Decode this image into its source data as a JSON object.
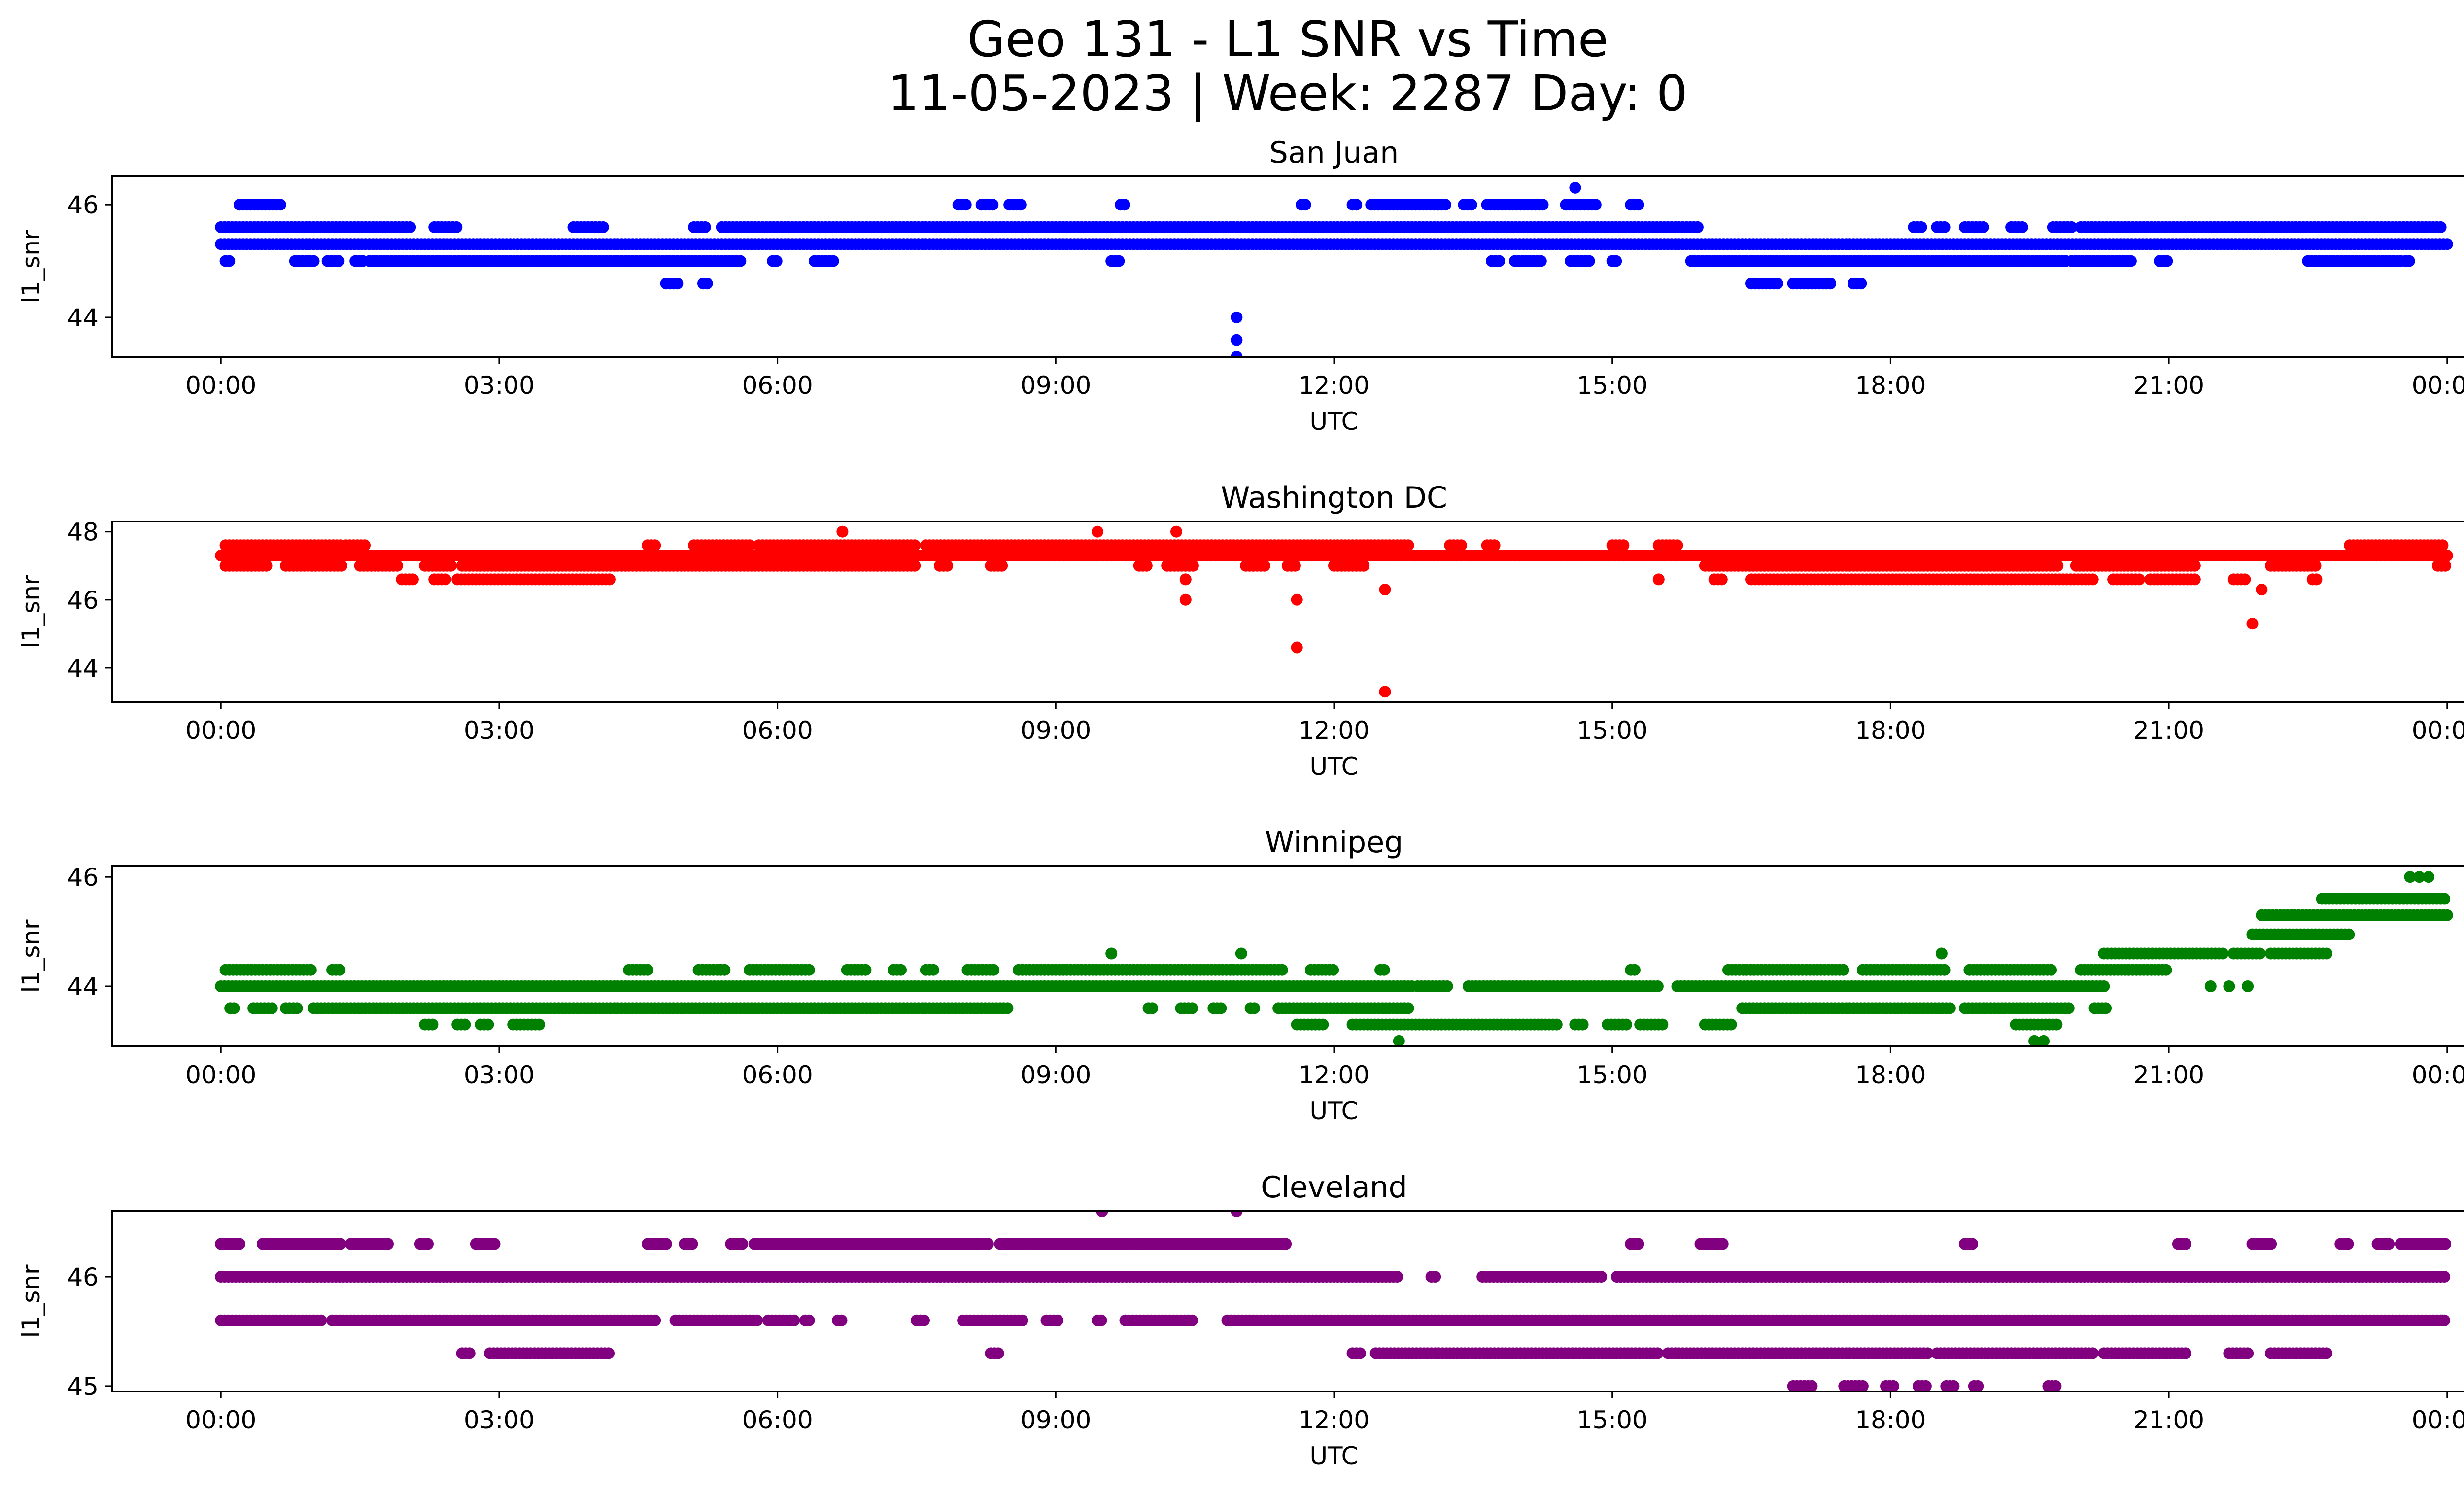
{
  "figure": {
    "title_line1": "Geo 131 - L1 SNR vs Time",
    "title_line2": "11-05-2023 | Week: 2287 Day: 0"
  },
  "chart_data": [
    {
      "type": "scatter",
      "title": "San Juan",
      "xlabel": "UTC",
      "ylabel": "l1_snr",
      "color": "#0000ff",
      "x_unit": "hours UTC (0 = 2023-11-05 00:00)",
      "xlim": [
        -1.17,
        25.17
      ],
      "ylim": [
        43.3,
        46.5
      ],
      "xticks": [
        "00:00",
        "03:00",
        "06:00",
        "09:00",
        "12:00",
        "15:00",
        "18:00",
        "21:00",
        "00:00"
      ],
      "yticks": [
        44,
        46
      ],
      "bands": [
        {
          "y": 45.6,
          "ranges": [
            [
              0,
              2.05
            ],
            [
              2.3,
              2.55
            ],
            [
              3.8,
              4.15
            ],
            [
              5.1,
              5.25
            ],
            [
              5.4,
              15.95
            ],
            [
              18.25,
              18.35
            ],
            [
              18.5,
              18.6
            ],
            [
              18.8,
              19.0
            ],
            [
              19.3,
              19.45
            ],
            [
              19.75,
              19.95
            ],
            [
              20.05,
              23.95
            ]
          ]
        },
        {
          "y": 45.3,
          "ranges": [
            [
              0,
              24.0
            ]
          ]
        },
        {
          "y": 45.0,
          "ranges": [
            [
              0.05,
              0.12
            ],
            [
              0.8,
              1.0
            ],
            [
              1.15,
              1.3
            ],
            [
              1.45,
              1.55
            ],
            [
              1.6,
              5.6
            ],
            [
              5.95,
              6.0
            ],
            [
              6.4,
              6.6
            ],
            [
              9.6,
              9.7
            ],
            [
              13.7,
              13.8
            ],
            [
              13.95,
              14.25
            ],
            [
              14.55,
              14.75
            ],
            [
              15.0,
              15.05
            ],
            [
              15.85,
              19.9
            ],
            [
              19.95,
              20.6
            ],
            [
              20.9,
              21.0
            ],
            [
              22.5,
              23.5
            ],
            [
              23.55,
              23.6
            ]
          ]
        },
        {
          "y": 44.6,
          "ranges": [
            [
              4.8,
              4.95
            ],
            [
              5.2,
              5.25
            ],
            [
              16.5,
              16.8
            ],
            [
              16.95,
              17.35
            ],
            [
              17.6,
              17.7
            ]
          ]
        },
        {
          "y": 46.0,
          "ranges": [
            [
              0.2,
              0.65
            ],
            [
              7.95,
              8.05
            ],
            [
              8.2,
              8.35
            ],
            [
              8.5,
              8.65
            ],
            [
              9.7,
              9.75
            ],
            [
              11.65,
              11.7
            ],
            [
              12.2,
              12.25
            ],
            [
              12.4,
              13.2
            ],
            [
              13.4,
              13.5
            ],
            [
              13.65,
              14.25
            ],
            [
              14.5,
              14.85
            ],
            [
              15.2,
              15.3
            ]
          ]
        }
      ],
      "points": [
        [
          10.95,
          44.0
        ],
        [
          10.95,
          43.6
        ],
        [
          10.95,
          43.3
        ],
        [
          14.6,
          46.3
        ]
      ]
    },
    {
      "type": "scatter",
      "title": "Washington DC",
      "xlabel": "UTC",
      "ylabel": "l1_snr",
      "color": "#ff0000",
      "x_unit": "hours UTC (0 = 2023-11-05 00:00)",
      "xlim": [
        -1.17,
        25.17
      ],
      "ylim": [
        43.0,
        48.3
      ],
      "xticks": [
        "00:00",
        "03:00",
        "06:00",
        "09:00",
        "12:00",
        "15:00",
        "18:00",
        "21:00",
        "00:00"
      ],
      "yticks": [
        44,
        46,
        48
      ],
      "bands": [
        {
          "y": 47.6,
          "ranges": [
            [
              0.05,
              1.3
            ],
            [
              1.35,
              1.55
            ],
            [
              4.6,
              4.7
            ],
            [
              5.1,
              5.7
            ],
            [
              5.8,
              7.5
            ],
            [
              7.6,
              12.8
            ],
            [
              13.25,
              13.4
            ],
            [
              13.65,
              13.75
            ],
            [
              15.0,
              15.15
            ],
            [
              15.5,
              15.7
            ],
            [
              22.95,
              23.95
            ]
          ]
        },
        {
          "y": 47.3,
          "ranges": [
            [
              0,
              24.0
            ]
          ]
        },
        {
          "y": 47.0,
          "ranges": [
            [
              0.05,
              0.5
            ],
            [
              0.7,
              1.3
            ],
            [
              1.5,
              1.9
            ],
            [
              2.2,
              2.5
            ],
            [
              2.6,
              7.5
            ],
            [
              7.75,
              7.85
            ],
            [
              8.3,
              8.45
            ],
            [
              9.9,
              10.0
            ],
            [
              10.2,
              10.5
            ],
            [
              11.05,
              11.25
            ],
            [
              11.5,
              11.6
            ],
            [
              12.0,
              12.35
            ],
            [
              16.0,
              19.8
            ],
            [
              20.0,
              21.3
            ],
            [
              22.1,
              22.6
            ],
            [
              23.9,
              24.0
            ]
          ]
        },
        {
          "y": 46.6,
          "ranges": [
            [
              1.95,
              2.1
            ],
            [
              2.3,
              2.45
            ],
            [
              2.55,
              4.2
            ],
            [
              16.1,
              16.2
            ],
            [
              16.5,
              20.2
            ],
            [
              20.4,
              20.7
            ],
            [
              20.8,
              21.3
            ],
            [
              21.7,
              21.85
            ],
            [
              22.55,
              22.6
            ]
          ]
        }
      ],
      "points": [
        [
          6.7,
          48.0
        ],
        [
          9.45,
          48.0
        ],
        [
          10.3,
          48.0
        ],
        [
          10.4,
          46.6
        ],
        [
          10.4,
          46.0
        ],
        [
          11.6,
          46.0
        ],
        [
          11.6,
          44.6
        ],
        [
          12.55,
          46.3
        ],
        [
          12.55,
          43.3
        ],
        [
          21.9,
          45.3
        ],
        [
          22.0,
          46.3
        ],
        [
          15.5,
          46.6
        ]
      ]
    },
    {
      "type": "scatter",
      "title": "Winnipeg",
      "xlabel": "UTC",
      "ylabel": "l1_snr",
      "color": "#008000",
      "x_unit": "hours UTC (0 = 2023-11-05 00:00)",
      "xlim": [
        -1.17,
        25.17
      ],
      "ylim": [
        42.9,
        46.2
      ],
      "xticks": [
        "00:00",
        "03:00",
        "06:00",
        "09:00",
        "12:00",
        "15:00",
        "18:00",
        "21:00",
        "00:00"
      ],
      "yticks": [
        44,
        46
      ],
      "bands": [
        {
          "y": 44.3,
          "ranges": [
            [
              0.05,
              1.0
            ],
            [
              1.2,
              1.3
            ],
            [
              4.4,
              4.6
            ],
            [
              5.15,
              5.45
            ],
            [
              5.7,
              6.35
            ],
            [
              6.75,
              6.95
            ],
            [
              7.25,
              7.35
            ],
            [
              7.6,
              7.7
            ],
            [
              8.05,
              8.35
            ],
            [
              8.6,
              11.45
            ],
            [
              11.75,
              12.0
            ],
            [
              12.5,
              12.55
            ],
            [
              15.2,
              15.25
            ],
            [
              16.25,
              17.5
            ],
            [
              17.7,
              18.6
            ],
            [
              18.85,
              19.75
            ],
            [
              20.05,
              21.0
            ]
          ]
        },
        {
          "y": 44.0,
          "ranges": [
            [
              0.0,
              12.85
            ],
            [
              12.9,
              13.25
            ],
            [
              13.45,
              15.5
            ],
            [
              15.7,
              20.3
            ]
          ]
        },
        {
          "y": 43.6,
          "ranges": [
            [
              0.1,
              0.15
            ],
            [
              0.35,
              0.55
            ],
            [
              0.7,
              0.85
            ],
            [
              1.0,
              8.5
            ],
            [
              10.0,
              10.05
            ],
            [
              10.35,
              10.5
            ],
            [
              10.7,
              10.8
            ],
            [
              11.1,
              11.15
            ],
            [
              11.4,
              12.8
            ],
            [
              16.4,
              18.65
            ],
            [
              18.8,
              19.95
            ],
            [
              20.2,
              20.35
            ]
          ]
        },
        {
          "y": 43.3,
          "ranges": [
            [
              2.2,
              2.3
            ],
            [
              2.55,
              2.65
            ],
            [
              2.8,
              2.9
            ],
            [
              3.15,
              3.45
            ],
            [
              11.6,
              11.9
            ],
            [
              12.2,
              14.4
            ],
            [
              14.6,
              14.7
            ],
            [
              14.95,
              15.15
            ],
            [
              15.3,
              15.55
            ],
            [
              16.0,
              16.3
            ],
            [
              19.35,
              19.8
            ]
          ]
        },
        {
          "y": 44.6,
          "ranges": [
            [
              20.3,
              21.6
            ],
            [
              21.7,
              22.0
            ],
            [
              22.1,
              22.7
            ]
          ]
        },
        {
          "y": 44.95,
          "ranges": [
            [
              21.9,
              22.95
            ]
          ]
        },
        {
          "y": 45.3,
          "ranges": [
            [
              22.0,
              24.0
            ]
          ]
        },
        {
          "y": 45.6,
          "ranges": [
            [
              22.65,
              24.0
            ]
          ]
        }
      ],
      "points": [
        [
          9.6,
          44.6
        ],
        [
          11.0,
          44.6
        ],
        [
          12.7,
          43.0
        ],
        [
          18.55,
          44.6
        ],
        [
          19.55,
          43.0
        ],
        [
          19.65,
          43.0
        ],
        [
          21.45,
          44.0
        ],
        [
          21.65,
          44.0
        ],
        [
          21.85,
          44.0
        ],
        [
          23.6,
          46.0
        ],
        [
          23.7,
          46.0
        ],
        [
          23.8,
          46.0
        ]
      ]
    },
    {
      "type": "scatter",
      "title": "Cleveland",
      "xlabel": "UTC",
      "ylabel": "l1_snr",
      "color": "#800080",
      "x_unit": "hours UTC (0 = 2023-11-05 00:00)",
      "xlim": [
        -1.17,
        25.17
      ],
      "ylim": [
        44.95,
        46.6
      ],
      "xticks": [
        "00:00",
        "03:00",
        "06:00",
        "09:00",
        "12:00",
        "15:00",
        "18:00",
        "21:00",
        "00:00"
      ],
      "yticks": [
        45,
        46
      ],
      "bands": [
        {
          "y": 46.3,
          "ranges": [
            [
              0.0,
              0.2
            ],
            [
              0.45,
              1.3
            ],
            [
              1.4,
              1.8
            ],
            [
              2.15,
              2.25
            ],
            [
              2.75,
              2.95
            ],
            [
              4.6,
              4.8
            ],
            [
              5.0,
              5.1
            ],
            [
              5.5,
              5.65
            ],
            [
              5.75,
              8.3
            ],
            [
              8.4,
              11.5
            ],
            [
              15.2,
              15.3
            ],
            [
              15.95,
              16.2
            ],
            [
              18.8,
              18.9
            ],
            [
              21.1,
              21.2
            ],
            [
              21.9,
              22.1
            ],
            [
              22.85,
              22.95
            ],
            [
              23.25,
              23.4
            ],
            [
              23.5,
              24.0
            ]
          ]
        },
        {
          "y": 46.0,
          "ranges": [
            [
              0.0,
              12.7
            ],
            [
              13.05,
              13.1
            ],
            [
              13.6,
              14.9
            ],
            [
              15.05,
              15.1
            ],
            [
              15.05,
              24.0
            ]
          ]
        },
        {
          "y": 45.6,
          "ranges": [
            [
              0.0,
              1.1
            ],
            [
              1.2,
              4.7
            ],
            [
              4.9,
              5.8
            ],
            [
              5.9,
              6.2
            ],
            [
              6.3,
              6.35
            ],
            [
              6.65,
              6.7
            ],
            [
              7.5,
              7.6
            ],
            [
              8.0,
              8.65
            ],
            [
              8.9,
              9.05
            ],
            [
              9.45,
              9.5
            ],
            [
              9.75,
              10.5
            ],
            [
              10.85,
              24.0
            ]
          ]
        },
        {
          "y": 45.3,
          "ranges": [
            [
              2.6,
              2.7
            ],
            [
              2.9,
              4.2
            ],
            [
              8.3,
              8.4
            ],
            [
              12.2,
              12.3
            ],
            [
              12.45,
              15.5
            ],
            [
              15.6,
              18.4
            ],
            [
              18.5,
              20.2
            ],
            [
              20.3,
              21.2
            ],
            [
              21.65,
              21.85
            ],
            [
              22.1,
              22.7
            ]
          ]
        },
        {
          "y": 45.0,
          "ranges": [
            [
              16.95,
              17.15
            ],
            [
              17.5,
              17.7
            ],
            [
              17.95,
              18.05
            ],
            [
              18.3,
              18.4
            ],
            [
              18.6,
              18.7
            ],
            [
              18.9,
              18.95
            ],
            [
              19.7,
              19.8
            ]
          ]
        }
      ],
      "points": [
        [
          9.5,
          46.6
        ],
        [
          10.95,
          46.6
        ],
        [
          23.95,
          45.6
        ]
      ]
    }
  ]
}
